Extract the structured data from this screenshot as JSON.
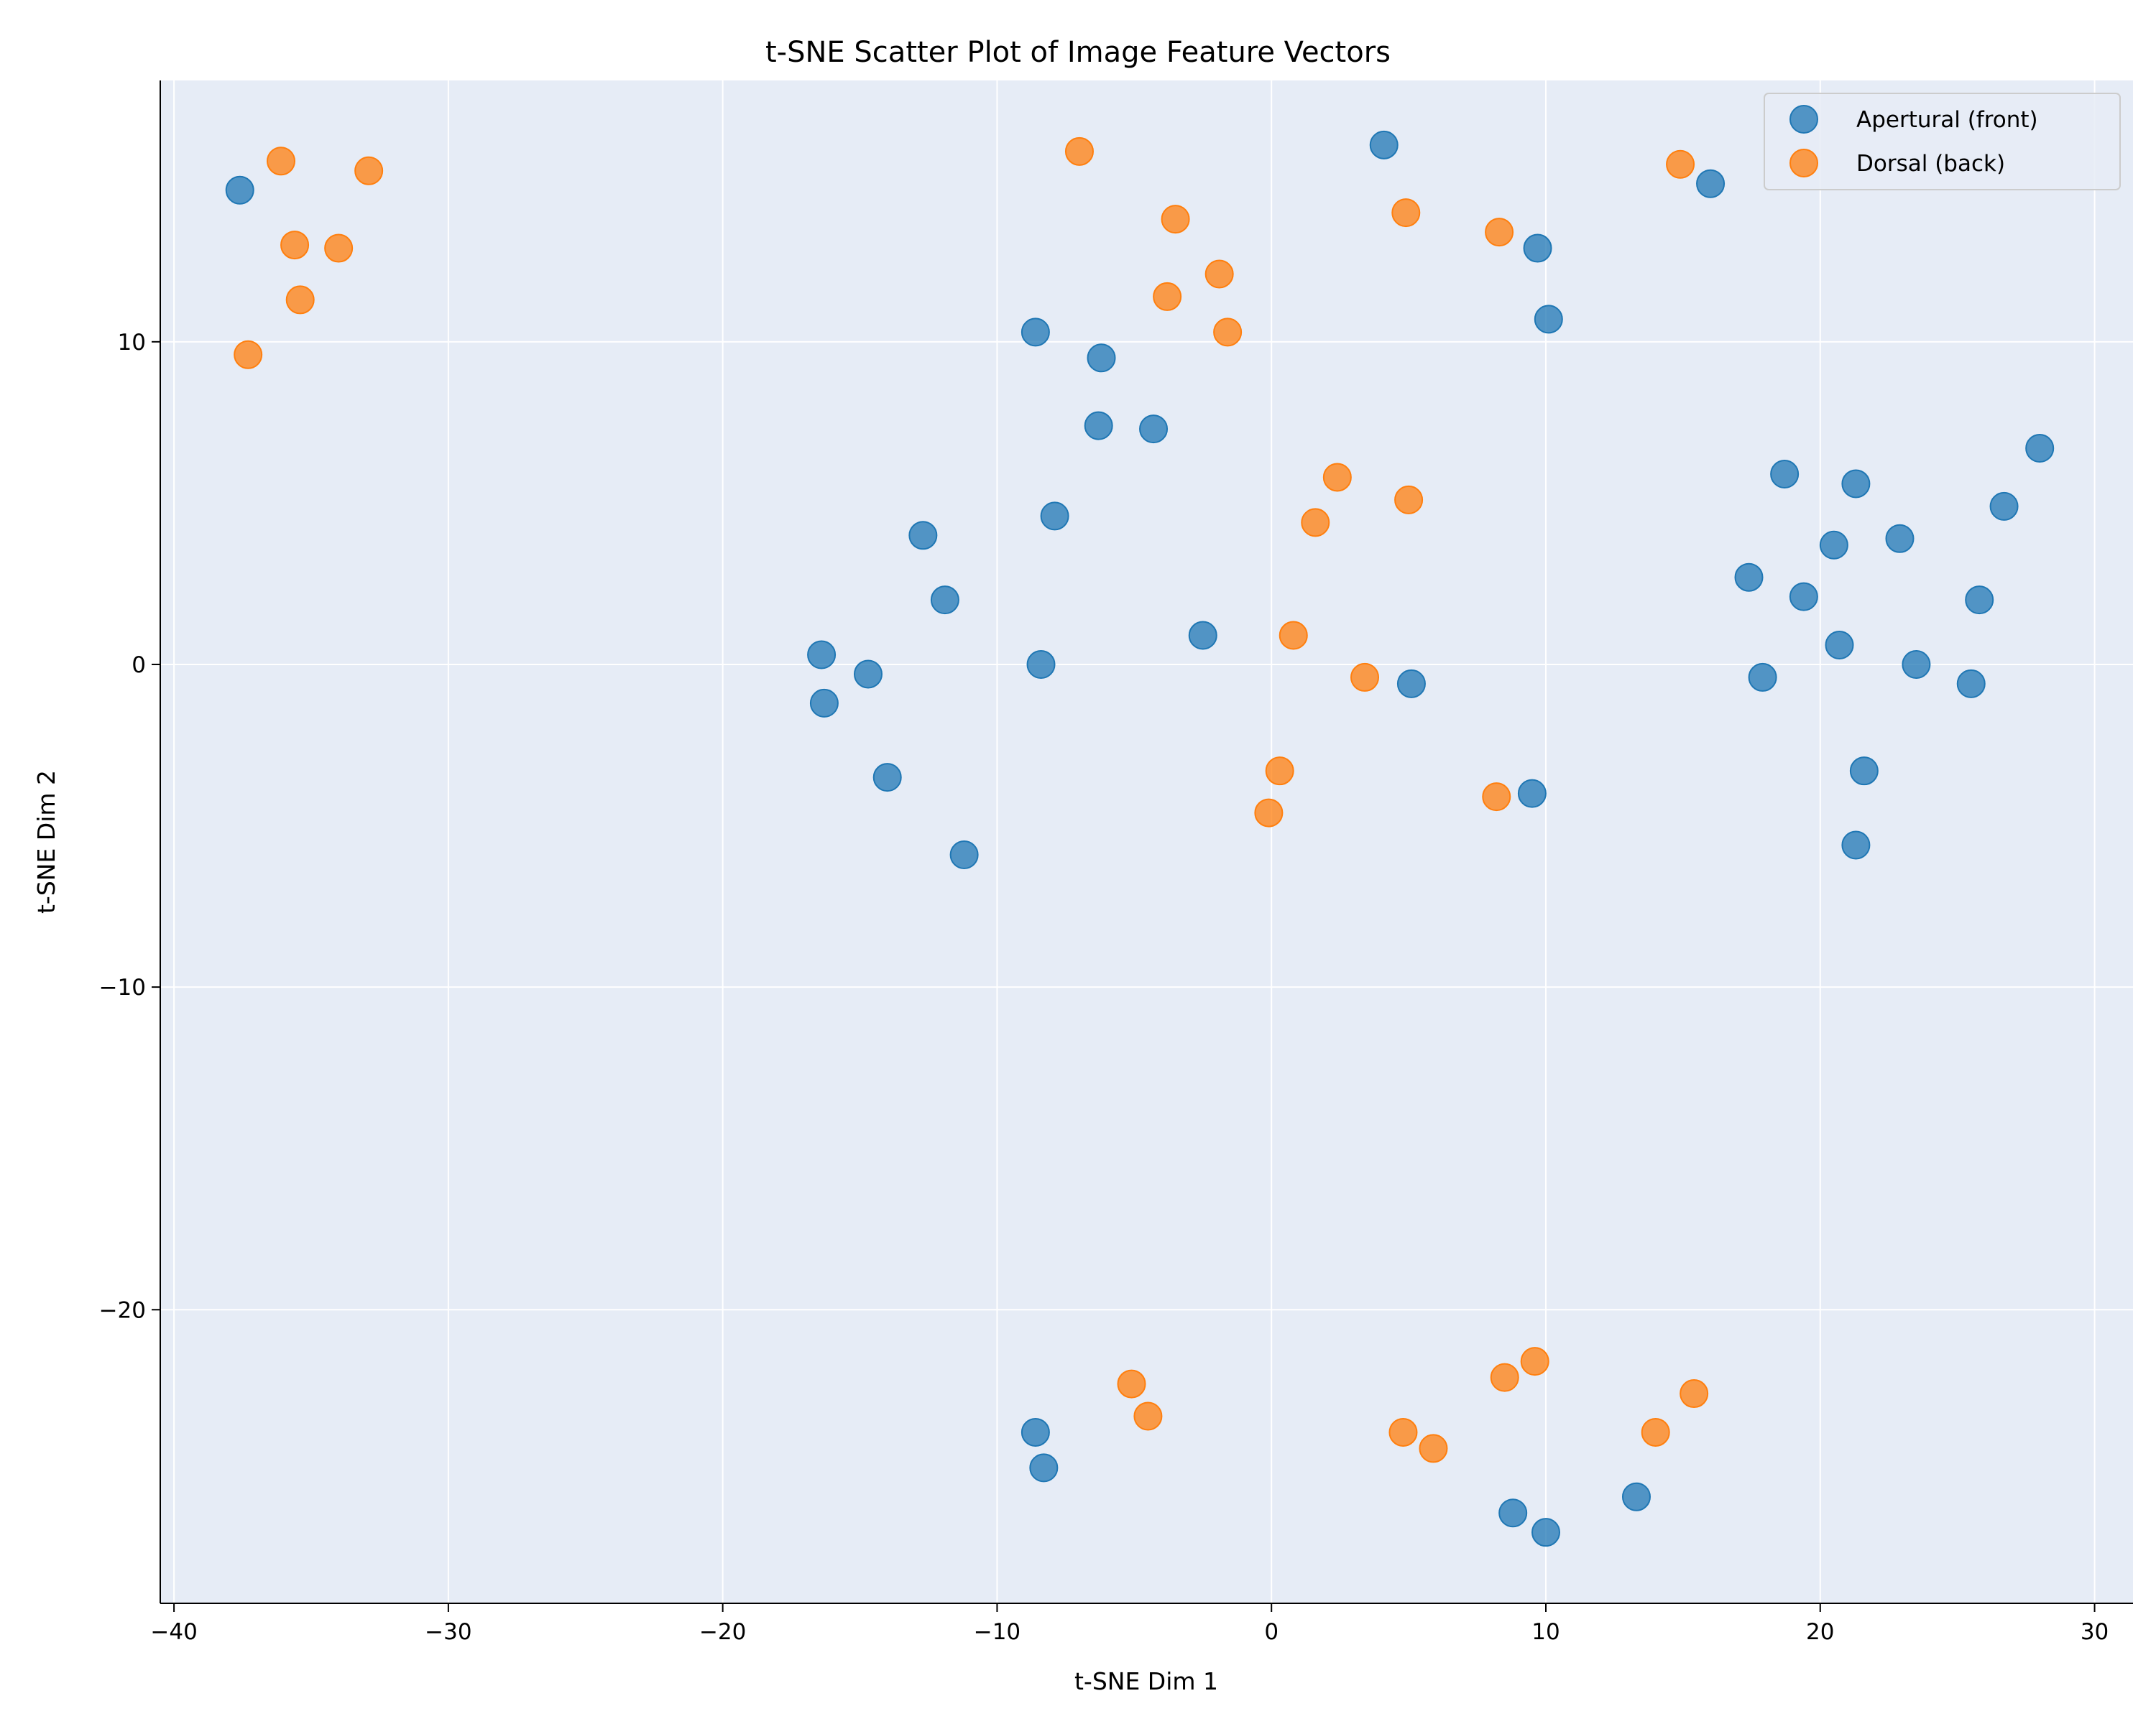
{
  "chart_data": {
    "type": "scatter",
    "title": "t-SNE Scatter Plot of Image Feature Vectors",
    "xlabel": "t-SNE Dim 1",
    "ylabel": "t-SNE Dim 2",
    "xlim": [
      -40.5,
      31.4
    ],
    "ylim": [
      -29.1,
      18.1
    ],
    "xticks": [
      -40,
      -30,
      -20,
      -10,
      0,
      10,
      20,
      30
    ],
    "yticks": [
      -20,
      -10,
      0,
      10
    ],
    "xtick_labels": [
      "−40",
      "−30",
      "−20",
      "−10",
      "0",
      "10",
      "20",
      "30"
    ],
    "ytick_labels": [
      "−20",
      "−10",
      "0",
      "10"
    ],
    "grid": true,
    "background_color": "#e6ecf6",
    "legend_position": "top-right",
    "series": [
      {
        "name": "Apertural (front)",
        "color": "#1f77b4",
        "points": [
          [
            -37.6,
            14.7
          ],
          [
            4.1,
            16.1
          ],
          [
            16.0,
            14.9
          ],
          [
            9.7,
            12.9
          ],
          [
            10.1,
            10.7
          ],
          [
            -8.6,
            10.3
          ],
          [
            -6.2,
            9.5
          ],
          [
            -6.3,
            7.4
          ],
          [
            -4.3,
            7.3
          ],
          [
            -7.9,
            4.6
          ],
          [
            -12.7,
            4.0
          ],
          [
            -11.9,
            2.0
          ],
          [
            -2.5,
            0.9
          ],
          [
            -8.4,
            0.0
          ],
          [
            -16.4,
            0.3
          ],
          [
            -14.7,
            -0.3
          ],
          [
            -16.3,
            -1.2
          ],
          [
            -14.0,
            -3.5
          ],
          [
            -11.2,
            -5.9
          ],
          [
            5.1,
            -0.6
          ],
          [
            9.5,
            -4.0
          ],
          [
            18.7,
            5.9
          ],
          [
            21.3,
            5.6
          ],
          [
            28.0,
            6.7
          ],
          [
            26.7,
            4.9
          ],
          [
            22.9,
            3.9
          ],
          [
            20.5,
            3.7
          ],
          [
            17.4,
            2.7
          ],
          [
            19.4,
            2.1
          ],
          [
            25.8,
            2.0
          ],
          [
            20.7,
            0.6
          ],
          [
            17.9,
            -0.4
          ],
          [
            23.5,
            0.0
          ],
          [
            25.5,
            -0.6
          ],
          [
            21.6,
            -3.3
          ],
          [
            21.3,
            -5.6
          ],
          [
            -8.6,
            -23.8
          ],
          [
            -8.3,
            -24.9
          ],
          [
            13.3,
            -25.8
          ],
          [
            8.8,
            -26.3
          ],
          [
            10.0,
            -26.9
          ]
        ]
      },
      {
        "name": "Dorsal (back)",
        "color": "#ff7f0e",
        "points": [
          [
            -36.1,
            15.6
          ],
          [
            -32.9,
            15.3
          ],
          [
            -35.6,
            13.0
          ],
          [
            -34.0,
            12.9
          ],
          [
            -35.4,
            11.3
          ],
          [
            -37.3,
            9.6
          ],
          [
            -7.0,
            15.9
          ],
          [
            -3.5,
            13.8
          ],
          [
            -3.8,
            11.4
          ],
          [
            -1.9,
            12.1
          ],
          [
            -1.6,
            10.3
          ],
          [
            4.9,
            14.0
          ],
          [
            8.3,
            13.4
          ],
          [
            14.9,
            15.5
          ],
          [
            2.4,
            5.8
          ],
          [
            1.6,
            4.4
          ],
          [
            5.0,
            5.1
          ],
          [
            0.8,
            0.9
          ],
          [
            3.4,
            -0.4
          ],
          [
            0.3,
            -3.3
          ],
          [
            -0.1,
            -4.6
          ],
          [
            8.2,
            -4.1
          ],
          [
            -5.1,
            -22.3
          ],
          [
            -4.5,
            -23.3
          ],
          [
            4.8,
            -23.8
          ],
          [
            5.9,
            -24.3
          ],
          [
            8.5,
            -22.1
          ],
          [
            9.6,
            -21.6
          ],
          [
            14.0,
            -23.8
          ],
          [
            15.4,
            -22.6
          ]
        ]
      }
    ]
  }
}
